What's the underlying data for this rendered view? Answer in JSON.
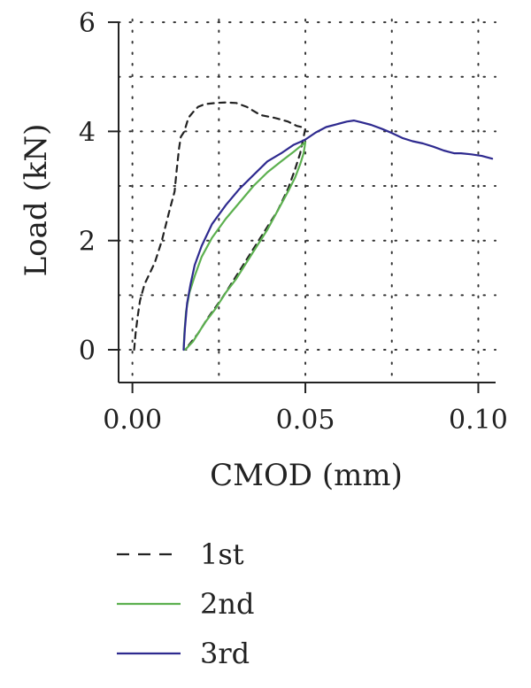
{
  "chart_data": {
    "type": "line",
    "title": "",
    "xlabel": "CMOD (mm)",
    "ylabel": "Load (kN)",
    "xlim": [
      -0.004,
      0.105
    ],
    "ylim": [
      -0.6,
      6.05
    ],
    "xticks": [
      0.0,
      0.05,
      0.1
    ],
    "xtick_labels": [
      "0.00",
      "0.05",
      "0.10"
    ],
    "yticks": [
      0,
      2,
      4,
      6
    ],
    "ytick_labels": [
      "0",
      "2",
      "4",
      "6"
    ],
    "grid": true,
    "grid_style": "dotted",
    "legend_position": "bottom-left, below plot",
    "series": [
      {
        "name": "1st",
        "color": "#222222",
        "dash": "dashed",
        "x": [
          0.0005,
          0.0009,
          0.0015,
          0.0022,
          0.0035,
          0.005,
          0.0065,
          0.0085,
          0.0105,
          0.0122,
          0.0128,
          0.0135,
          0.014,
          0.015,
          0.0162,
          0.0175,
          0.019,
          0.021,
          0.024,
          0.027,
          0.03,
          0.033,
          0.037,
          0.041,
          0.045,
          0.0475,
          0.049,
          0.05,
          0.0485,
          0.047,
          0.045,
          0.042,
          0.038,
          0.034,
          0.03,
          0.026,
          0.022,
          0.019,
          0.0165,
          0.0155
        ],
        "y": [
          0.0,
          0.3,
          0.6,
          0.9,
          1.2,
          1.4,
          1.6,
          2.0,
          2.5,
          2.9,
          3.3,
          3.7,
          3.9,
          4.0,
          4.25,
          4.35,
          4.45,
          4.5,
          4.52,
          4.53,
          4.52,
          4.45,
          4.3,
          4.25,
          4.18,
          4.1,
          4.08,
          4.05,
          3.6,
          3.3,
          2.95,
          2.55,
          2.15,
          1.75,
          1.35,
          0.95,
          0.6,
          0.3,
          0.1,
          0.02
        ]
      },
      {
        "name": "2nd",
        "color": "#5cb04f",
        "dash": "solid",
        "x": [
          0.0148,
          0.015,
          0.0155,
          0.0165,
          0.018,
          0.02,
          0.023,
          0.027,
          0.031,
          0.035,
          0.039,
          0.043,
          0.0465,
          0.049,
          0.05,
          0.0495,
          0.0485,
          0.047,
          0.045,
          0.042,
          0.039,
          0.036,
          0.033,
          0.03,
          0.027,
          0.024,
          0.021,
          0.019,
          0.0175,
          0.016,
          0.0152
        ],
        "y": [
          0.0,
          0.3,
          0.7,
          1.05,
          1.35,
          1.7,
          2.05,
          2.4,
          2.7,
          3.0,
          3.25,
          3.45,
          3.62,
          3.75,
          3.8,
          3.6,
          3.4,
          3.15,
          2.9,
          2.55,
          2.2,
          1.9,
          1.6,
          1.3,
          1.05,
          0.75,
          0.5,
          0.3,
          0.15,
          0.05,
          0.0
        ]
      },
      {
        "name": "3rd",
        "color": "#2e2a8f",
        "dash": "solid",
        "x": [
          0.0148,
          0.0152,
          0.0158,
          0.0168,
          0.018,
          0.02,
          0.023,
          0.027,
          0.031,
          0.035,
          0.039,
          0.043,
          0.0465,
          0.049,
          0.05,
          0.053,
          0.056,
          0.059,
          0.062,
          0.064,
          0.066,
          0.069,
          0.072,
          0.075,
          0.078,
          0.081,
          0.084,
          0.087,
          0.09,
          0.093,
          0.095,
          0.098,
          0.101,
          0.104
        ],
        "y": [
          0.0,
          0.4,
          0.85,
          1.2,
          1.55,
          1.9,
          2.3,
          2.65,
          2.95,
          3.2,
          3.45,
          3.6,
          3.75,
          3.82,
          3.85,
          3.98,
          4.08,
          4.13,
          4.18,
          4.2,
          4.17,
          4.12,
          4.05,
          3.97,
          3.88,
          3.82,
          3.78,
          3.72,
          3.65,
          3.6,
          3.6,
          3.58,
          3.55,
          3.5
        ]
      }
    ]
  }
}
